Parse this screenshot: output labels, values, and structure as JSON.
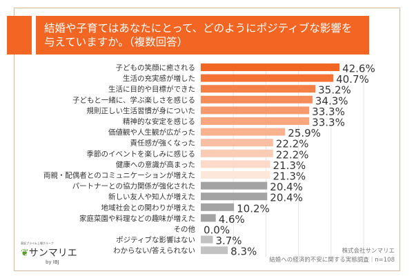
{
  "chart_data": {
    "type": "bar",
    "orientation": "horizontal",
    "title": "結婚や子育てはあなたにとって、どのようにポジティブな影響を\n与えていますか。（複数回答）",
    "categories": [
      "子どもの笑顔に癒される",
      "生活の充実感が増した",
      "生活に目的や目標ができた",
      "子どもと一緒に、学ぶ楽しさを感じる",
      "規則正しい生活習慣が身についた",
      "精神的な安定を感じる",
      "価値観や人生観が広がった",
      "責任感が強くなった",
      "季節のイベントを楽しみに感じる",
      "健康への意識が高まった",
      "両親・配偶者とのコミュニケーションが増えた",
      "パートナーとの協力関係が強化された",
      "新しい友人や知人が増えた",
      "地域社会との関わりが増えた",
      "家庭菜園や料理などの趣味が増えた",
      "その他",
      "ポジティブな影響はない",
      "わからない/答えられない"
    ],
    "values": [
      42.6,
      40.7,
      35.2,
      34.3,
      33.3,
      33.3,
      25.9,
      22.2,
      22.2,
      21.3,
      21.3,
      20.4,
      20.4,
      10.2,
      4.6,
      0.0,
      3.7,
      8.3
    ],
    "value_labels": [
      "42.6%",
      "40.7%",
      "35.2%",
      "34.3%",
      "33.3%",
      "33.3%",
      "25.9%",
      "22.2%",
      "22.2%",
      "21.3%",
      "21.3%",
      "20.4%",
      "20.4%",
      "10.2%",
      "4.6%",
      "0.0%",
      "3.7%",
      "8.3%"
    ],
    "xlim": [
      0,
      50
    ],
    "grid": true,
    "colors": {
      "accent": "#f26522",
      "light": "#fde6da",
      "gray": "#a3a3a3",
      "lightgray": "#c2c2c2"
    }
  },
  "logo": {
    "tagline": "東証プライム上場グループ",
    "name": "サンマリエ",
    "by": "by IBJ"
  },
  "source": {
    "company": "株式会社サンマリエ",
    "survey": "結婚への経済的不安に関する実態調査｜n=108"
  }
}
